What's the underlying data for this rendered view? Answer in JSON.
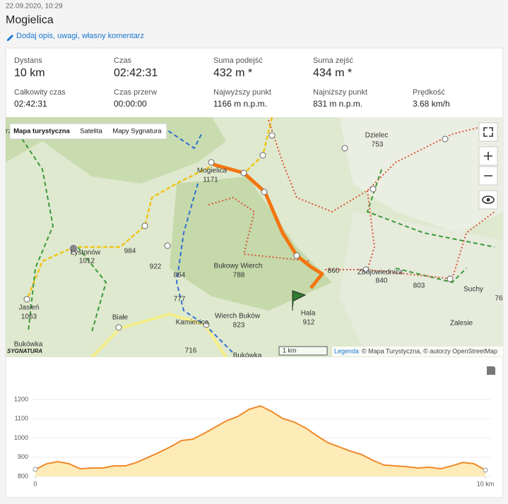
{
  "header": {
    "date": "22.09.2020, 10:29",
    "title": "Mogielica",
    "edit_link": "Dodaj opis, uwagi, własny komentarz"
  },
  "stats": [
    {
      "label": "Dystans",
      "value": "10 km"
    },
    {
      "label": "Czas",
      "value": "02:42:31"
    },
    {
      "label": "Suma podejść",
      "value": "432 m *"
    },
    {
      "label": "Suma zejść",
      "value": "434 m *"
    },
    {
      "label": "Całkowity czas",
      "value": "02:42:31"
    },
    {
      "label": "Czas przerw",
      "value": "00:00:00"
    },
    {
      "label": "Najwyższy punkt",
      "value": "1166 m n.p.m."
    },
    {
      "label": "Najniższy punkt",
      "value": "831 m n.p.m."
    },
    {
      "label": "Prędkość",
      "value": "3.68 km/h"
    }
  ],
  "map": {
    "layers": [
      "Mapa turystyczna",
      "Satelita",
      "Mapy Sygnatura"
    ],
    "labels": [
      "rzeczki",
      "Dzielec",
      "753",
      "Mogielica",
      "1171",
      "Łystonów",
      "1012",
      "984",
      "922",
      "864",
      "777",
      "Bukowy Wierch",
      "788",
      "Wierch Buków",
      "823",
      "Hala",
      "912",
      "860",
      "Zbójowiednica",
      "840",
      "803",
      "Suchy",
      "76",
      "Zalesie",
      "Jasień",
      "1063",
      "Białe",
      "Kamienica",
      "716",
      "Bukówka",
      "Bukówka"
    ],
    "scale": "1 km",
    "legend": "Legenda",
    "attribution": "© Mapa Turystyczna, © autorzy OpenStreetMap",
    "logo": "SYGNATURA"
  },
  "chart_data": {
    "type": "area",
    "x": [
      0,
      0.25,
      0.5,
      0.75,
      1,
      1.25,
      1.5,
      1.75,
      2,
      2.25,
      2.5,
      2.75,
      3,
      3.25,
      3.5,
      3.75,
      4,
      4.25,
      4.5,
      4.75,
      5,
      5.25,
      5.5,
      5.75,
      6,
      6.25,
      6.5,
      6.75,
      7,
      7.25,
      7.5,
      7.75,
      8,
      8.25,
      8.5,
      8.75,
      9,
      9.25,
      9.5,
      9.75,
      10
    ],
    "values": [
      837,
      866,
      877,
      866,
      840,
      844,
      844,
      855,
      855,
      873,
      899,
      925,
      954,
      987,
      994,
      1024,
      1057,
      1090,
      1112,
      1149,
      1167,
      1138,
      1101,
      1083,
      1053,
      1013,
      976,
      954,
      932,
      914,
      884,
      859,
      855,
      851,
      844,
      848,
      840,
      855,
      873,
      866,
      833
    ],
    "color": "#f0892a",
    "fill_color": "#fdebb8",
    "xlim": [
      0,
      10
    ],
    "ylim": [
      800,
      1220
    ],
    "xticks": [
      0,
      {
        "value": 10,
        "label": "10 km"
      }
    ],
    "yticks": [
      800,
      900,
      1000,
      1100,
      1200
    ],
    "grid": true
  }
}
